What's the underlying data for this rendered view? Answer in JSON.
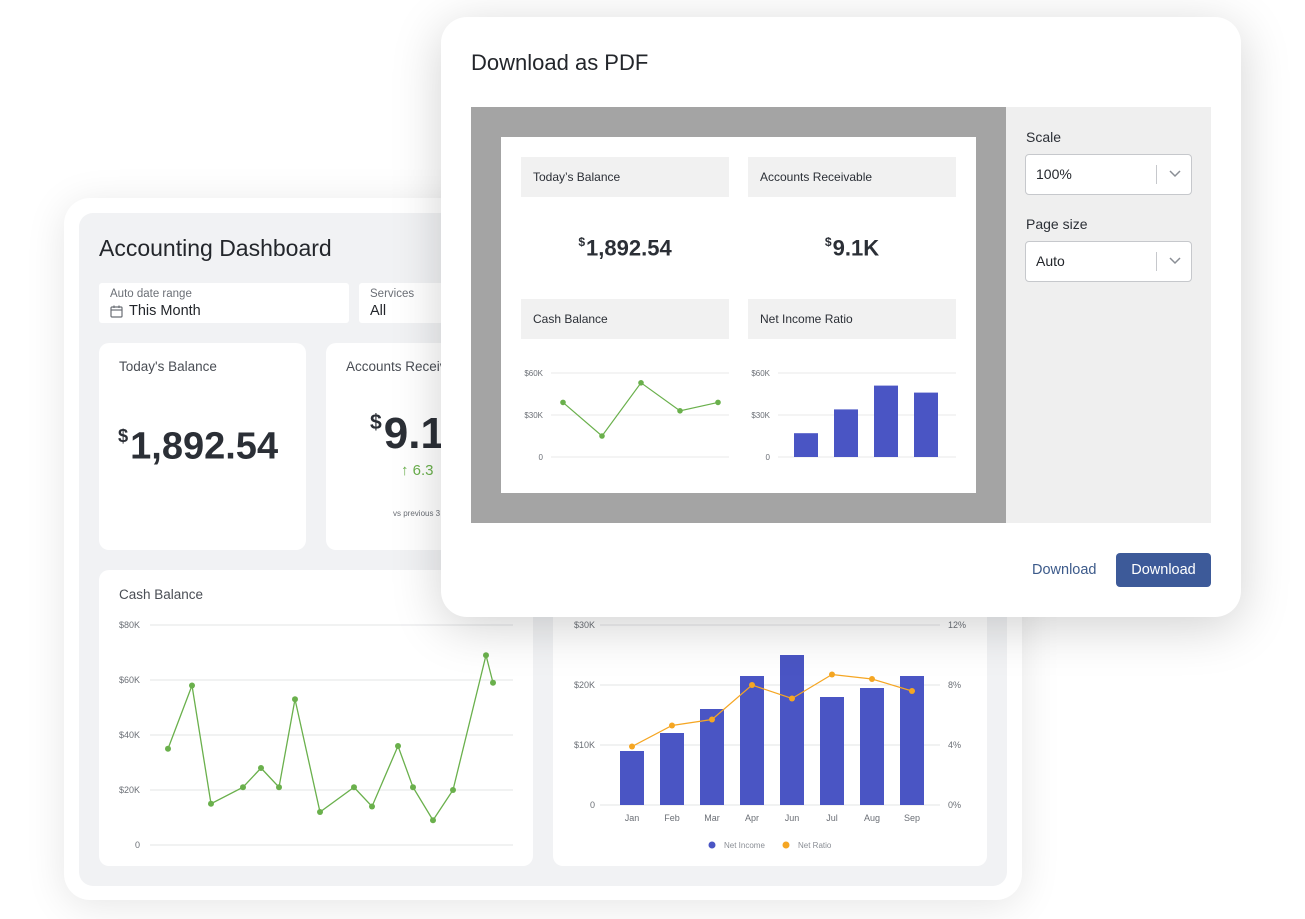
{
  "dashboard": {
    "title": "Accounting Dashboard",
    "filters": [
      {
        "label": "Auto date range",
        "value": "This Month"
      },
      {
        "label": "Services",
        "value": "All"
      }
    ],
    "todays_balance": {
      "title": "Today's Balance",
      "currency": "$",
      "value": "1,892.54"
    },
    "accounts_receivable": {
      "title": "Accounts Receiv",
      "currency": "$",
      "value": "9.1",
      "delta": "6.3",
      "vs_text": "vs previous 3"
    },
    "cash_balance": {
      "title": "Cash Balance"
    },
    "net_income_card": {
      "legend": [
        "Net Income",
        "Net Ratio"
      ]
    }
  },
  "modal": {
    "title": "Download as PDF",
    "preview": {
      "todays_balance": {
        "title": "Today’s Balance",
        "currency": "$",
        "value": "1,892.54"
      },
      "accounts_receivable": {
        "title": "Accounts Receivable",
        "currency": "$",
        "value": "9.1K"
      },
      "cash_balance": {
        "title": "Cash Balance"
      },
      "net_income_ratio": {
        "title": "Net Income Ratio"
      }
    },
    "scale": {
      "label": "Scale",
      "value": "100%"
    },
    "page_size": {
      "label": "Page size",
      "value": "Auto"
    },
    "download_link": "Download",
    "download_button": "Download"
  },
  "colors": {
    "accent": "#3d5a99",
    "green": "#6ab04c",
    "bar": "#4a55c4",
    "orange": "#f5a623"
  },
  "chart_data": [
    {
      "id": "cash-balance",
      "type": "line",
      "title": "Cash Balance",
      "ylim": [
        0,
        80000
      ],
      "yticks": [
        "0",
        "$20K",
        "$40K",
        "$60K",
        "$80K"
      ],
      "values": [
        35000,
        58000,
        15000,
        21000,
        28000,
        21000,
        53000,
        12000,
        21000,
        14000,
        36000,
        21000,
        9000,
        20000,
        69000,
        59000
      ],
      "color": "#6ab04c"
    },
    {
      "id": "net-income",
      "type": "bar",
      "categories": [
        "Jan",
        "Feb",
        "Mar",
        "Apr",
        "Jun",
        "Jul",
        "Aug",
        "Sep"
      ],
      "ylim": [
        0,
        30000
      ],
      "yticks": [
        "0",
        "$10K",
        "$20K",
        "$30K"
      ],
      "y2lim": [
        0,
        12
      ],
      "y2ticks": [
        "0%",
        "4%",
        "8%",
        "12%"
      ],
      "series": [
        {
          "name": "Net Income",
          "type": "bar",
          "values": [
            9000,
            12000,
            16000,
            21500,
            25000,
            18000,
            19500,
            21500
          ],
          "color": "#4a55c4"
        },
        {
          "name": "Net Ratio",
          "type": "line",
          "axis": "right",
          "values": [
            3.9,
            5.3,
            5.7,
            8.0,
            7.1,
            8.7,
            8.4,
            7.6
          ],
          "color": "#f5a623"
        }
      ],
      "legend": "bottom"
    },
    {
      "id": "preview-cash-balance",
      "type": "line",
      "ylim": [
        0,
        60000
      ],
      "yticks": [
        "0",
        "$30K",
        "$60K"
      ],
      "values": [
        39000,
        15000,
        53000,
        33000,
        39000
      ],
      "color": "#6ab04c"
    },
    {
      "id": "preview-net-income",
      "type": "bar",
      "ylim": [
        0,
        60000
      ],
      "yticks": [
        "0",
        "$30K",
        "$60K"
      ],
      "values": [
        17000,
        34000,
        51000,
        46000
      ],
      "color": "#4a55c4"
    }
  ]
}
